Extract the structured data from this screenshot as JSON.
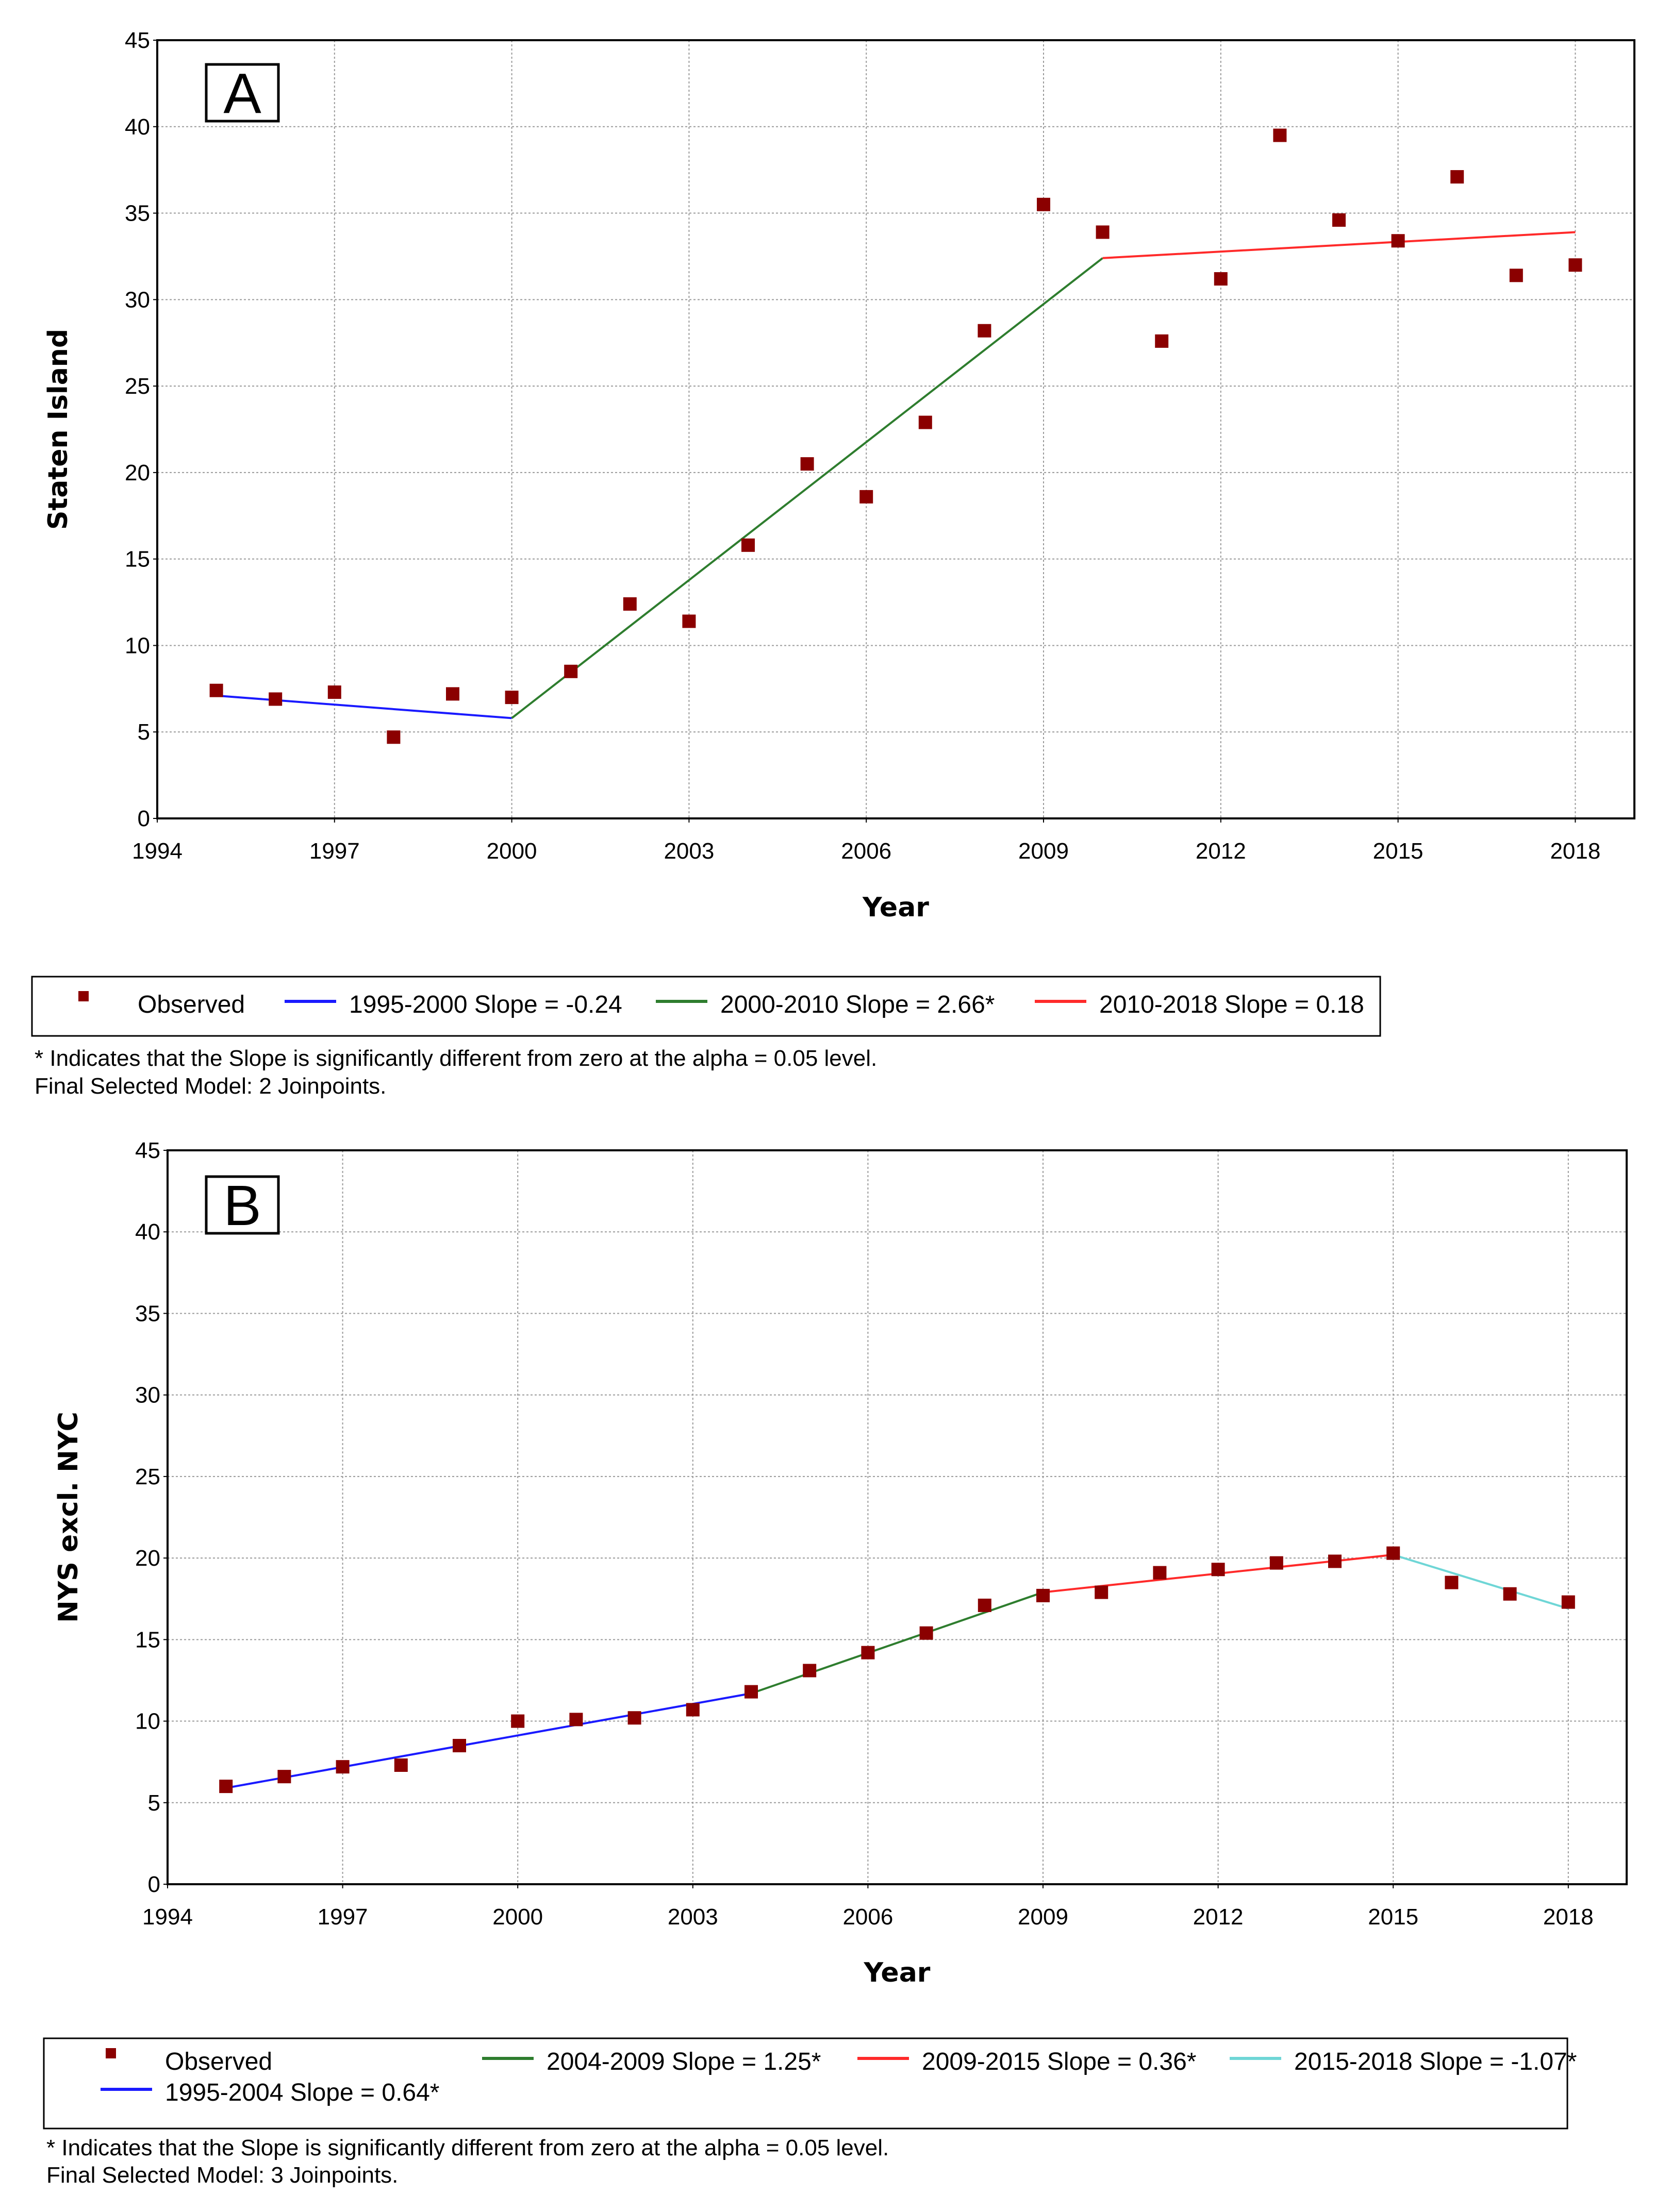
{
  "chart_data": [
    {
      "type": "scatter",
      "panel_label": "A",
      "xlabel": "Year",
      "ylabel": "Staten Island",
      "xlim": [
        1994,
        2019
      ],
      "ylim": [
        0,
        45
      ],
      "xticks": [
        1994,
        1997,
        2000,
        2003,
        2006,
        2009,
        2012,
        2015,
        2018
      ],
      "yticks": [
        0,
        5,
        10,
        15,
        20,
        25,
        30,
        35,
        40,
        45
      ],
      "grid": true,
      "legend_position": "below",
      "observed": {
        "name": "Observed",
        "color": "#8b0000",
        "x": [
          1995,
          1996,
          1997,
          1998,
          1999,
          2000,
          2001,
          2002,
          2003,
          2004,
          2005,
          2006,
          2007,
          2008,
          2009,
          2010,
          2011,
          2012,
          2013,
          2014,
          2015,
          2016,
          2017,
          2018
        ],
        "y": [
          7.4,
          6.9,
          7.3,
          4.7,
          7.2,
          7.0,
          8.5,
          12.4,
          11.4,
          15.8,
          20.5,
          18.6,
          22.9,
          28.2,
          35.5,
          33.9,
          27.6,
          31.2,
          39.5,
          34.6,
          33.4,
          37.1,
          31.4,
          32.0
        ]
      },
      "segments": [
        {
          "legend": "1995-2000 Slope  = -0.24",
          "color": "#1a1aff",
          "x": [
            1995,
            2000
          ],
          "y": [
            7.1,
            5.8
          ]
        },
        {
          "legend": "2000-2010 Slope  =  2.66*",
          "color": "#2e7d2e",
          "x": [
            2000,
            2010
          ],
          "y": [
            5.8,
            32.4
          ]
        },
        {
          "legend": "2010-2018 Slope  =  0.18",
          "color": "#ff2a2a",
          "x": [
            2010,
            2018
          ],
          "y": [
            32.4,
            33.9
          ]
        }
      ],
      "legend_observed": "Observed",
      "notes": [
        "* Indicates that the Slope is significantly different from zero at the alpha = 0.05 level.",
        "Final Selected Model: 2 Joinpoints."
      ]
    },
    {
      "type": "scatter",
      "panel_label": "B",
      "xlabel": "Year",
      "ylabel": "NYS excl. NYC",
      "xlim": [
        1994,
        2019
      ],
      "ylim": [
        0,
        45
      ],
      "xticks": [
        1994,
        1997,
        2000,
        2003,
        2006,
        2009,
        2012,
        2015,
        2018
      ],
      "yticks": [
        0,
        5,
        10,
        15,
        20,
        25,
        30,
        35,
        40,
        45
      ],
      "grid": true,
      "legend_position": "below",
      "observed": {
        "name": "Observed",
        "color": "#8b0000",
        "x": [
          1995,
          1996,
          1997,
          1998,
          1999,
          2000,
          2001,
          2002,
          2003,
          2004,
          2005,
          2006,
          2007,
          2008,
          2009,
          2010,
          2011,
          2012,
          2013,
          2014,
          2015,
          2016,
          2017,
          2018
        ],
        "y": [
          6.0,
          6.6,
          7.2,
          7.3,
          8.5,
          10.0,
          10.1,
          10.2,
          10.7,
          11.8,
          13.1,
          14.2,
          15.4,
          17.1,
          17.7,
          17.9,
          19.1,
          19.3,
          19.7,
          19.8,
          20.3,
          18.5,
          17.8,
          17.3
        ]
      },
      "segments": [
        {
          "legend": "1995-2004 Slope  =  0.64*",
          "color": "#1a1aff",
          "x": [
            1995,
            2004
          ],
          "y": [
            5.9,
            11.7
          ]
        },
        {
          "legend": "2004-2009 Slope  =  1.25*",
          "color": "#2e7d2e",
          "x": [
            2004,
            2009
          ],
          "y": [
            11.7,
            17.9
          ]
        },
        {
          "legend": "2009-2015 Slope  =  0.36*",
          "color": "#ff2a2a",
          "x": [
            2009,
            2015
          ],
          "y": [
            17.9,
            20.2
          ]
        },
        {
          "legend": "2015-2018 Slope  = -1.07*",
          "color": "#6fd6d6",
          "x": [
            2015,
            2018
          ],
          "y": [
            20.2,
            16.9
          ]
        }
      ],
      "legend_observed": "Observed",
      "notes": [
        "* Indicates that the Slope is significantly different from zero at the alpha = 0.05 level.",
        "Final Selected Model: 3 Joinpoints."
      ]
    }
  ]
}
